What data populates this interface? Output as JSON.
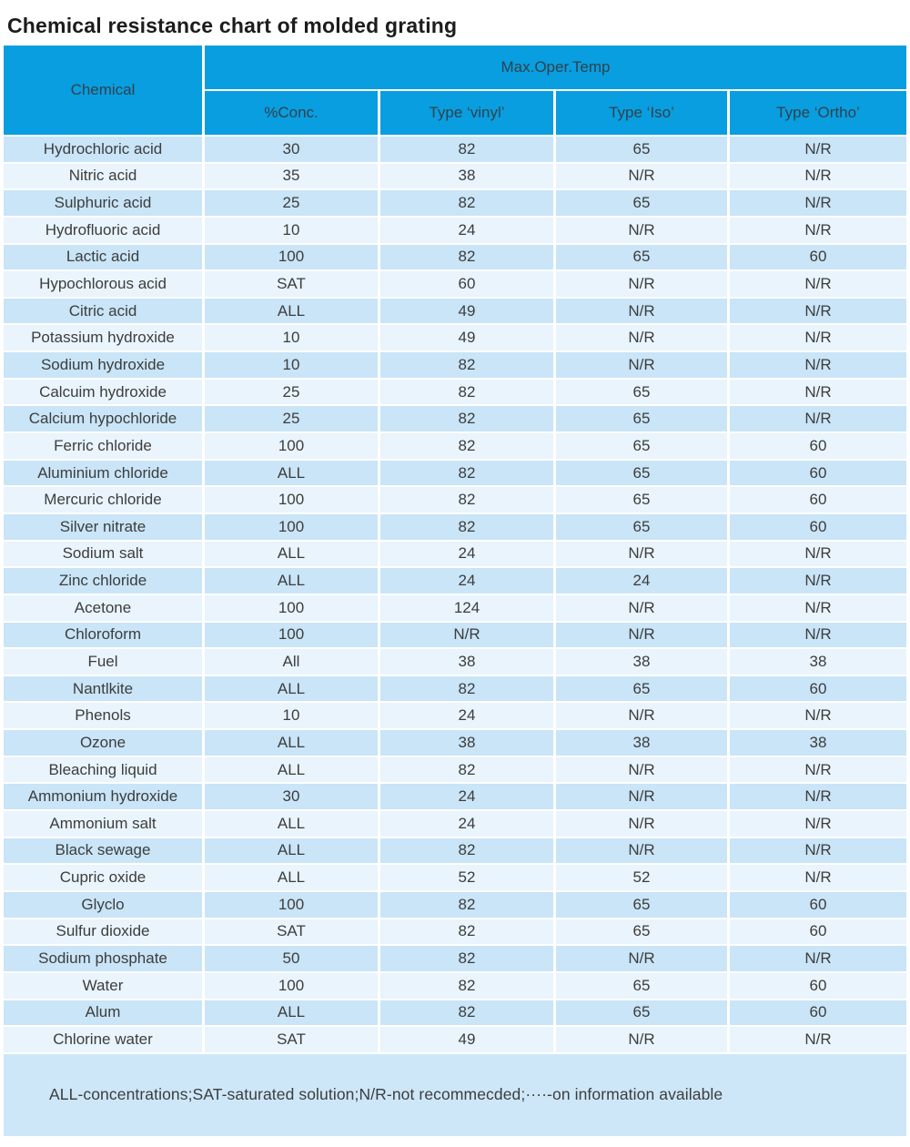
{
  "title": "Chemical resistance chart of molded grating",
  "footnote": "ALL-concentrations;SAT-saturated solution;N/R-not recommecded;····-on information available",
  "colors": {
    "header_bg": "#099EE0",
    "row_dark": "#C9E5F7",
    "row_light": "#E9F4FC",
    "footer_bg": "#CDE7F8"
  },
  "table": {
    "header": {
      "chemical": "Chemical",
      "max_oper_temp": "Max.Oper.Temp",
      "sub_columns": [
        "%Conc.",
        "Type ‘vinyl’",
        "Type ‘Iso’",
        "Type ‘Ortho’"
      ]
    },
    "rows": [
      [
        "Hydrochloric acid",
        "30",
        "82",
        "65",
        "N/R"
      ],
      [
        "Nitric acid",
        "35",
        "38",
        "N/R",
        "N/R"
      ],
      [
        "Sulphuric acid",
        "25",
        "82",
        "65",
        "N/R"
      ],
      [
        "Hydrofluoric acid",
        "10",
        "24",
        "N/R",
        "N/R"
      ],
      [
        "Lactic acid",
        "100",
        "82",
        "65",
        "60"
      ],
      [
        "Hypochlorous acid",
        "SAT",
        "60",
        "N/R",
        "N/R"
      ],
      [
        "Citric acid",
        "ALL",
        "49",
        "N/R",
        "N/R"
      ],
      [
        "Potassium hydroxide",
        "10",
        "49",
        "N/R",
        "N/R"
      ],
      [
        "Sodium hydroxide",
        "10",
        "82",
        "N/R",
        "N/R"
      ],
      [
        "Calcuim hydroxide",
        "25",
        "82",
        "65",
        "N/R"
      ],
      [
        "Calcium hypochloride",
        "25",
        "82",
        "65",
        "N/R"
      ],
      [
        "Ferric chloride",
        "100",
        "82",
        "65",
        "60"
      ],
      [
        "Aluminium chloride",
        "ALL",
        "82",
        "65",
        "60"
      ],
      [
        "Mercuric chloride",
        "100",
        "82",
        "65",
        "60"
      ],
      [
        "Silver nitrate",
        "100",
        "82",
        "65",
        "60"
      ],
      [
        "Sodium salt",
        "ALL",
        "24",
        "N/R",
        "N/R"
      ],
      [
        "Zinc chloride",
        "ALL",
        "24",
        "24",
        "N/R"
      ],
      [
        "Acetone",
        "100",
        "124",
        "N/R",
        "N/R"
      ],
      [
        "Chloroform",
        "100",
        "N/R",
        "N/R",
        "N/R"
      ],
      [
        "Fuel",
        "All",
        "38",
        "38",
        "38"
      ],
      [
        "Nantlkite",
        "ALL",
        "82",
        "65",
        "60"
      ],
      [
        "Phenols",
        "10",
        "24",
        "N/R",
        "N/R"
      ],
      [
        "Ozone",
        "ALL",
        "38",
        "38",
        "38"
      ],
      [
        "Bleaching liquid",
        "ALL",
        "82",
        "N/R",
        "N/R"
      ],
      [
        "Ammonium hydroxide",
        "30",
        "24",
        "N/R",
        "N/R"
      ],
      [
        "Ammonium salt",
        "ALL",
        "24",
        "N/R",
        "N/R"
      ],
      [
        "Black sewage",
        "ALL",
        "82",
        "N/R",
        "N/R"
      ],
      [
        "Cupric oxide",
        "ALL",
        "52",
        "52",
        "N/R"
      ],
      [
        "Glyclo",
        "100",
        "82",
        "65",
        "60"
      ],
      [
        "Sulfur dioxide",
        "SAT",
        "82",
        "65",
        "60"
      ],
      [
        "Sodium phosphate",
        "50",
        "82",
        "N/R",
        "N/R"
      ],
      [
        "Water",
        "100",
        "82",
        "65",
        "60"
      ],
      [
        "Alum",
        "ALL",
        "82",
        "65",
        "60"
      ],
      [
        "Chlorine water",
        "SAT",
        "49",
        "N/R",
        "N/R"
      ]
    ]
  }
}
